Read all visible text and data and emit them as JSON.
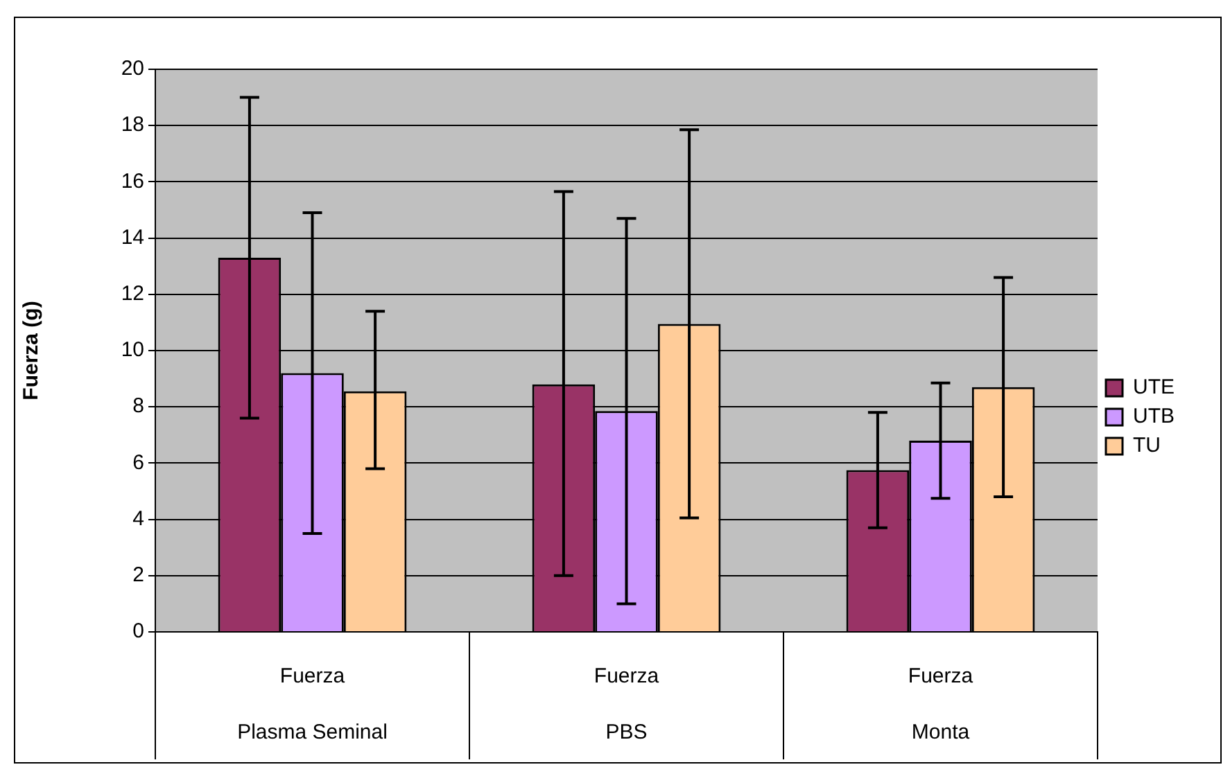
{
  "chart_data": {
    "type": "bar",
    "ylabel": "Fuerza (g)",
    "categories": [
      "Fuerza\nPlasma Seminal",
      "Fuerza\nPBS",
      "Fuerza\nMonta"
    ],
    "series": [
      {
        "name": "UTE",
        "color": "#993366",
        "values": [
          13.3,
          8.8,
          5.75
        ],
        "errors": [
          [
            7.6,
            19.0
          ],
          [
            2.0,
            15.65
          ],
          [
            3.7,
            7.8
          ]
        ]
      },
      {
        "name": "UTB",
        "color": "#cc99ff",
        "values": [
          9.2,
          7.85,
          6.8
        ],
        "errors": [
          [
            3.5,
            14.9
          ],
          [
            1.0,
            14.7
          ],
          [
            4.75,
            8.85
          ]
        ]
      },
      {
        "name": "TU",
        "color": "#ffcc99",
        "values": [
          8.55,
          10.95,
          8.7
        ],
        "errors": [
          [
            5.8,
            11.4
          ],
          [
            4.05,
            17.85
          ],
          [
            4.8,
            12.6
          ]
        ]
      }
    ],
    "ylim": [
      0,
      20
    ],
    "yticks": [
      0,
      2,
      4,
      6,
      8,
      10,
      12,
      14,
      16,
      18,
      20
    ],
    "grid": "y",
    "legend": "right"
  }
}
